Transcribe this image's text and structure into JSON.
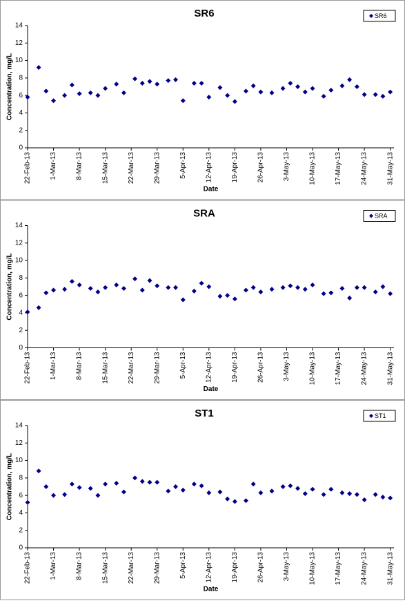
{
  "chart_data": [
    {
      "type": "scatter",
      "title": "SR6",
      "xlabel": "Date",
      "ylabel": "Concentration, mg/L",
      "color": "#00008b",
      "legend": "upper right",
      "x": [
        "2013-02-22",
        "2013-02-25",
        "2013-02-27",
        "2013-03-01",
        "2013-03-04",
        "2013-03-06",
        "2013-03-08",
        "2013-03-11",
        "2013-03-13",
        "2013-03-15",
        "2013-03-18",
        "2013-03-20",
        "2013-03-23",
        "2013-03-25",
        "2013-03-27",
        "2013-03-29",
        "2013-04-01",
        "2013-04-03",
        "2013-04-05",
        "2013-04-08",
        "2013-04-10",
        "2013-04-12",
        "2013-04-15",
        "2013-04-17",
        "2013-04-19",
        "2013-04-22",
        "2013-04-24",
        "2013-04-26",
        "2013-04-29",
        "2013-05-02",
        "2013-05-04",
        "2013-05-06",
        "2013-05-08",
        "2013-05-10",
        "2013-05-13",
        "2013-05-15",
        "2013-05-18",
        "2013-05-20",
        "2013-05-22",
        "2013-05-24",
        "2013-05-27",
        "2013-05-29",
        "2013-05-31"
      ],
      "series": [
        {
          "name": "SR6",
          "color": "#00008b",
          "values": [
            5.8,
            9.2,
            6.5,
            5.4,
            6.0,
            7.2,
            6.2,
            6.3,
            6.0,
            6.8,
            7.3,
            6.3,
            7.9,
            7.4,
            7.6,
            7.3,
            7.7,
            7.8,
            5.4,
            7.4,
            7.4,
            5.8,
            6.9,
            6.0,
            5.3,
            6.5,
            7.1,
            6.4,
            6.3,
            6.8,
            7.4,
            7.0,
            6.4,
            6.8,
            5.9,
            6.6,
            7.1,
            7.8,
            7.0,
            6.1,
            6.1,
            5.9,
            6.4
          ]
        }
      ],
      "xlim": [
        "2013-02-22",
        "2013-06-01"
      ],
      "xticks": [
        {
          "value": "2013-02-22",
          "label": "22-Feb-13"
        },
        {
          "value": "2013-03-01",
          "label": "1-Mar-13"
        },
        {
          "value": "2013-03-08",
          "label": "8-Mar-13"
        },
        {
          "value": "2013-03-15",
          "label": "15-Mar-13"
        },
        {
          "value": "2013-03-22",
          "label": "22-Mar-13"
        },
        {
          "value": "2013-03-29",
          "label": "29-Mar-13"
        },
        {
          "value": "2013-04-05",
          "label": "5-Apr-13"
        },
        {
          "value": "2013-04-12",
          "label": "12-Apr-13"
        },
        {
          "value": "2013-04-19",
          "label": "19-Apr-13"
        },
        {
          "value": "2013-04-26",
          "label": "26-Apr-13"
        },
        {
          "value": "2013-05-03",
          "label": "3-May-13"
        },
        {
          "value": "2013-05-10",
          "label": "10-May-13"
        },
        {
          "value": "2013-05-17",
          "label": "17-May-13"
        },
        {
          "value": "2013-05-24",
          "label": "24-May-13"
        },
        {
          "value": "2013-05-31",
          "label": "31-May-13"
        }
      ],
      "ylim": [
        0,
        14
      ],
      "yticks": [
        0,
        2,
        4,
        6,
        8,
        10,
        12,
        14
      ]
    },
    {
      "type": "scatter",
      "title": "SRA",
      "xlabel": "Date",
      "ylabel": "Concentration, mg/L",
      "color": "#00008b",
      "legend": "upper right",
      "x": [
        "2013-02-22",
        "2013-02-25",
        "2013-02-27",
        "2013-03-01",
        "2013-03-04",
        "2013-03-06",
        "2013-03-08",
        "2013-03-11",
        "2013-03-13",
        "2013-03-15",
        "2013-03-18",
        "2013-03-20",
        "2013-03-23",
        "2013-03-25",
        "2013-03-27",
        "2013-03-29",
        "2013-04-01",
        "2013-04-03",
        "2013-04-05",
        "2013-04-08",
        "2013-04-10",
        "2013-04-12",
        "2013-04-15",
        "2013-04-17",
        "2013-04-19",
        "2013-04-22",
        "2013-04-24",
        "2013-04-26",
        "2013-04-29",
        "2013-05-02",
        "2013-05-04",
        "2013-05-06",
        "2013-05-08",
        "2013-05-10",
        "2013-05-13",
        "2013-05-15",
        "2013-05-18",
        "2013-05-20",
        "2013-05-22",
        "2013-05-24",
        "2013-05-27",
        "2013-05-29",
        "2013-05-31"
      ],
      "series": [
        {
          "name": "SRA",
          "color": "#00008b",
          "values": [
            4.1,
            4.6,
            6.3,
            6.6,
            6.7,
            7.6,
            7.2,
            6.8,
            6.4,
            6.9,
            7.2,
            6.8,
            7.9,
            6.6,
            7.7,
            7.1,
            6.9,
            6.9,
            5.5,
            6.5,
            7.4,
            7.0,
            5.9,
            6.0,
            5.6,
            6.6,
            6.9,
            6.4,
            6.7,
            6.9,
            7.1,
            6.9,
            6.7,
            7.2,
            6.2,
            6.3,
            6.8,
            5.7,
            6.9,
            6.9,
            6.4,
            7.0,
            6.2
          ]
        }
      ],
      "xlim": [
        "2013-02-22",
        "2013-06-01"
      ],
      "xticks": [
        {
          "value": "2013-02-22",
          "label": "22-Feb-13"
        },
        {
          "value": "2013-03-01",
          "label": "1-Mar-13"
        },
        {
          "value": "2013-03-08",
          "label": "8-Mar-13"
        },
        {
          "value": "2013-03-15",
          "label": "15-Mar-13"
        },
        {
          "value": "2013-03-22",
          "label": "22-Mar-13"
        },
        {
          "value": "2013-03-29",
          "label": "29-Mar-13"
        },
        {
          "value": "2013-04-05",
          "label": "5-Apr-13"
        },
        {
          "value": "2013-04-12",
          "label": "12-Apr-13"
        },
        {
          "value": "2013-04-19",
          "label": "19-Apr-13"
        },
        {
          "value": "2013-04-26",
          "label": "26-Apr-13"
        },
        {
          "value": "2013-05-03",
          "label": "3-May-13"
        },
        {
          "value": "2013-05-10",
          "label": "10-May-13"
        },
        {
          "value": "2013-05-17",
          "label": "17-May-13"
        },
        {
          "value": "2013-05-24",
          "label": "24-May-13"
        },
        {
          "value": "2013-05-31",
          "label": "31-May-13"
        }
      ],
      "ylim": [
        0,
        14
      ],
      "yticks": [
        0,
        2,
        4,
        6,
        8,
        10,
        12,
        14
      ]
    },
    {
      "type": "scatter",
      "title": "ST1",
      "xlabel": "Date",
      "ylabel": "Concentration, mg/L",
      "color": "#00008b",
      "legend": "upper right",
      "x": [
        "2013-02-22",
        "2013-02-25",
        "2013-02-27",
        "2013-03-01",
        "2013-03-04",
        "2013-03-06",
        "2013-03-08",
        "2013-03-11",
        "2013-03-13",
        "2013-03-15",
        "2013-03-18",
        "2013-03-20",
        "2013-03-23",
        "2013-03-25",
        "2013-03-27",
        "2013-03-29",
        "2013-04-01",
        "2013-04-03",
        "2013-04-05",
        "2013-04-08",
        "2013-04-10",
        "2013-04-12",
        "2013-04-15",
        "2013-04-17",
        "2013-04-19",
        "2013-04-22",
        "2013-04-24",
        "2013-04-26",
        "2013-04-29",
        "2013-05-02",
        "2013-05-04",
        "2013-05-06",
        "2013-05-08",
        "2013-05-10",
        "2013-05-13",
        "2013-05-15",
        "2013-05-18",
        "2013-05-20",
        "2013-05-22",
        "2013-05-24",
        "2013-05-27",
        "2013-05-29",
        "2013-05-31"
      ],
      "series": [
        {
          "name": "ST1",
          "color": "#00008b",
          "values": [
            5.2,
            8.8,
            7.0,
            6.0,
            6.1,
            7.3,
            6.9,
            6.8,
            6.0,
            7.3,
            7.4,
            6.4,
            8.0,
            7.6,
            7.5,
            7.5,
            6.5,
            7.0,
            6.6,
            7.3,
            7.1,
            6.3,
            6.4,
            5.6,
            5.3,
            5.4,
            7.3,
            6.3,
            6.5,
            7.0,
            7.1,
            6.8,
            6.2,
            6.7,
            6.1,
            6.7,
            6.3,
            6.2,
            6.1,
            5.5,
            6.1,
            5.8,
            5.7
          ]
        }
      ],
      "xlim": [
        "2013-02-22",
        "2013-06-01"
      ],
      "xticks": [
        {
          "value": "2013-02-22",
          "label": "22-Feb-13"
        },
        {
          "value": "2013-03-01",
          "label": "1-Mar-13"
        },
        {
          "value": "2013-03-08",
          "label": "8-Mar-13"
        },
        {
          "value": "2013-03-15",
          "label": "15-Mar-13"
        },
        {
          "value": "2013-03-22",
          "label": "22-Mar-13"
        },
        {
          "value": "2013-03-29",
          "label": "29-Mar-13"
        },
        {
          "value": "2013-04-05",
          "label": "5-Apr-13"
        },
        {
          "value": "2013-04-12",
          "label": "12-Apr-13"
        },
        {
          "value": "2013-04-19",
          "label": "19-Apr-13"
        },
        {
          "value": "2013-04-26",
          "label": "26-Apr-13"
        },
        {
          "value": "2013-05-03",
          "label": "3-May-13"
        },
        {
          "value": "2013-05-10",
          "label": "10-May-13"
        },
        {
          "value": "2013-05-17",
          "label": "17-May-13"
        },
        {
          "value": "2013-05-24",
          "label": "24-May-13"
        },
        {
          "value": "2013-05-31",
          "label": "31-May-13"
        }
      ],
      "ylim": [
        0,
        14
      ],
      "yticks": [
        0,
        2,
        4,
        6,
        8,
        10,
        12,
        14
      ]
    }
  ]
}
